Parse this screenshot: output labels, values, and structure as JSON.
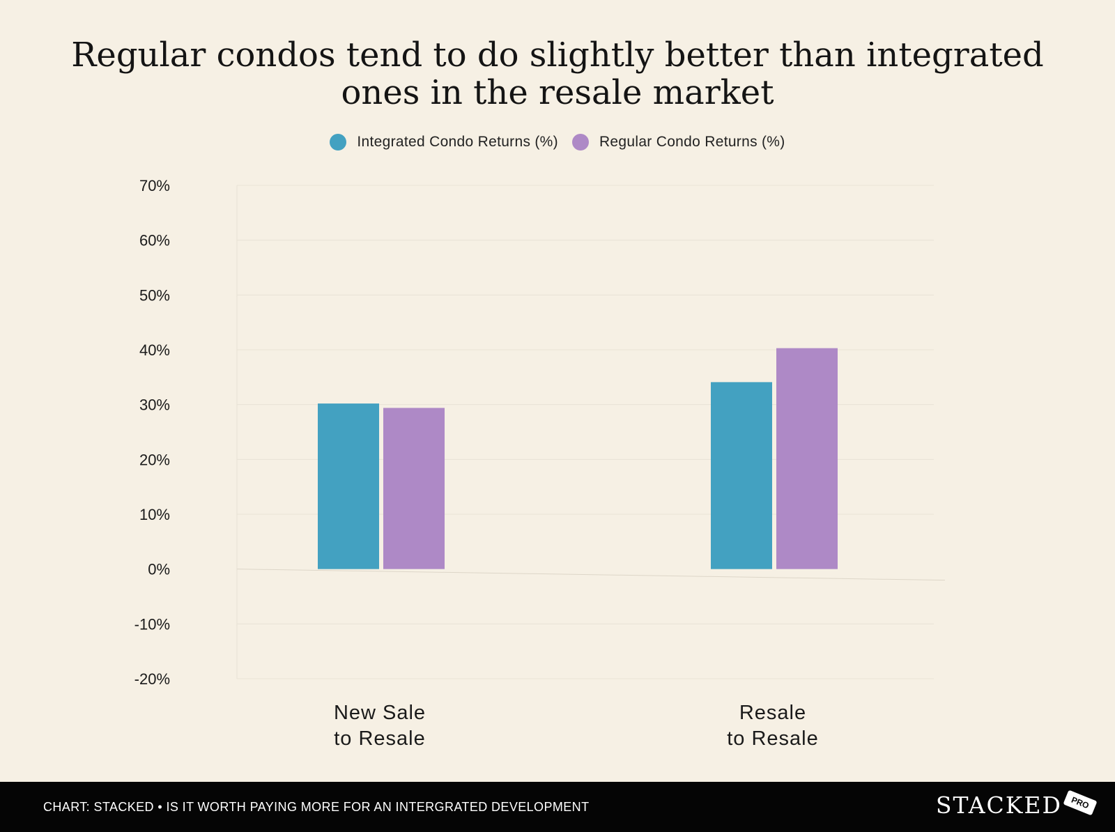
{
  "chart_data": {
    "type": "bar",
    "title": "Regular condos tend to do slightly better than integrated ones in the resale market",
    "title_lines": [
      "Regular condos tend to do slightly better than integrated",
      "ones in the resale market"
    ],
    "categories": [
      [
        "New Sale",
        "to Resale"
      ],
      [
        "Resale",
        "to Resale"
      ]
    ],
    "series": [
      {
        "name": "Integrated Condo Returns (%)",
        "color": "#43a1c1",
        "values": [
          30.2,
          34.1
        ]
      },
      {
        "name": "Regular Condo Returns (%)",
        "color": "#ae89c6",
        "values": [
          29.4,
          40.3
        ]
      }
    ],
    "ylim": [
      -20,
      70
    ],
    "yticks": [
      70,
      60,
      50,
      40,
      30,
      20,
      10,
      0,
      -10,
      -20
    ],
    "ytick_labels": [
      "70%",
      "60%",
      "50%",
      "40%",
      "30%",
      "20%",
      "10%",
      "0%",
      "-10%",
      "-20%"
    ],
    "xlabel": "",
    "ylabel": "",
    "grid": true,
    "legend_position": "top-center"
  },
  "footer": {
    "source": "CHART: STACKED • IS IT WORTH PAYING MORE FOR AN INTERGRATED DEVELOPMENT",
    "brand": "STACKED",
    "badge": "PRO"
  },
  "colors": {
    "background": "#f6f0e4",
    "footer_background": "#050505"
  }
}
